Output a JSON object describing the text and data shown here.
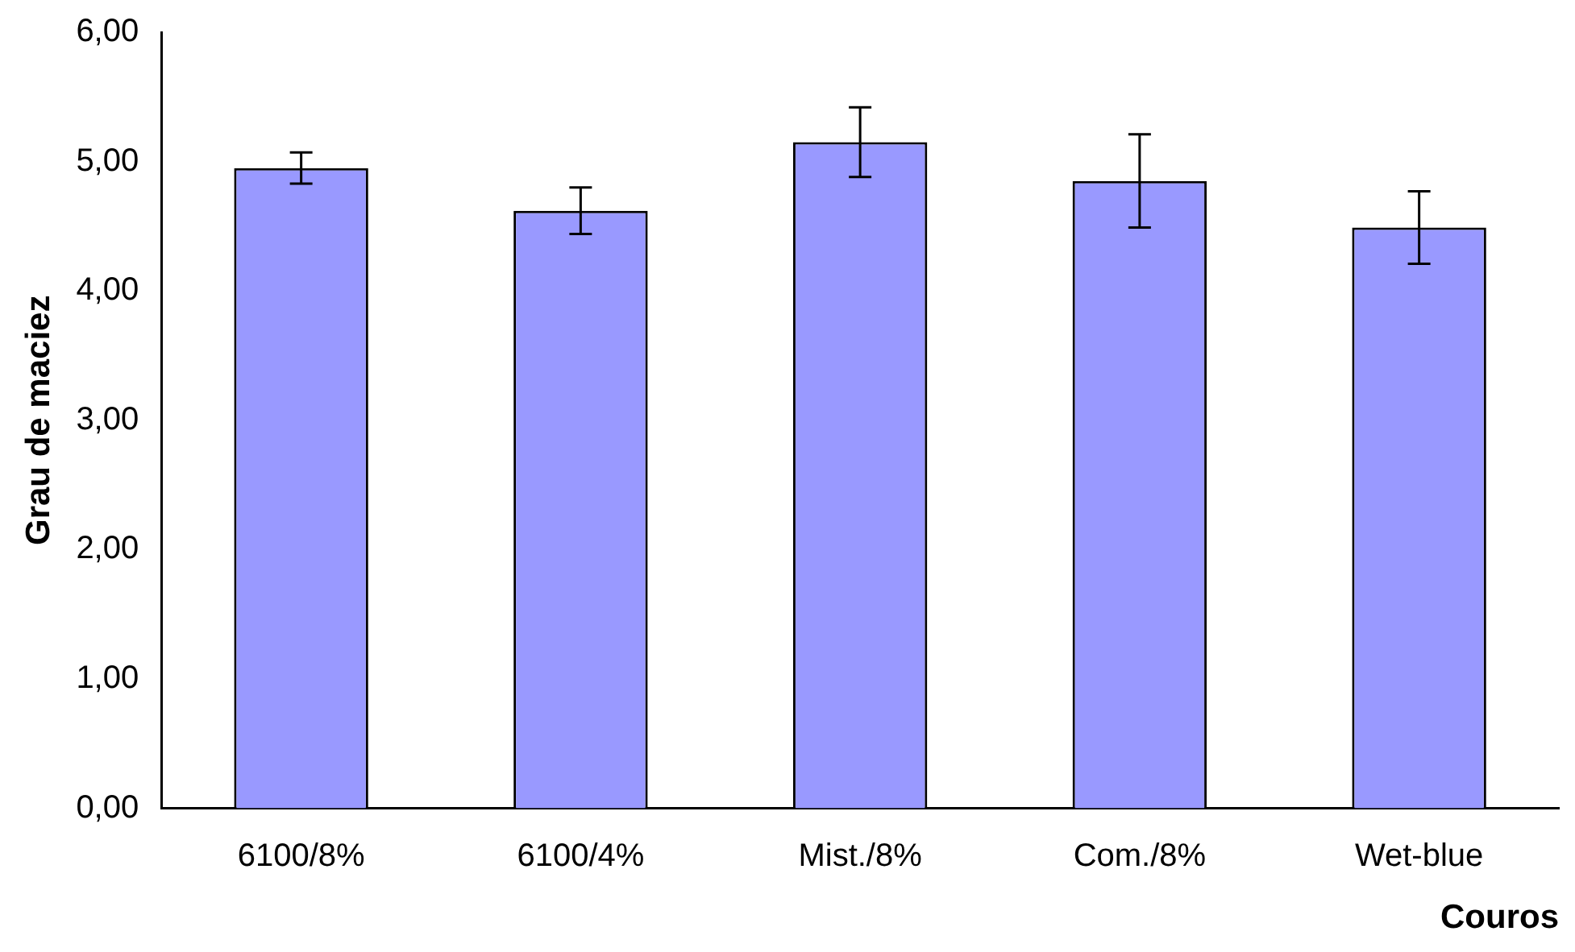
{
  "chart_data": {
    "type": "bar",
    "xlabel": "Couros",
    "ylabel": "Grau de maciez",
    "categories": [
      "6100/8%",
      "6100/4%",
      "Mist./8%",
      "Com./8%",
      "Wet-blue"
    ],
    "values": [
      4.95,
      4.62,
      5.15,
      4.85,
      4.49
    ],
    "errors": [
      0.12,
      0.18,
      0.27,
      0.36,
      0.28
    ],
    "color": "#9999ff",
    "ylim": [
      0,
      6
    ],
    "yticks": [
      {
        "value": 0,
        "label": "0,00"
      },
      {
        "value": 1,
        "label": "1,00"
      },
      {
        "value": 2,
        "label": "2,00"
      },
      {
        "value": 3,
        "label": "3,00"
      },
      {
        "value": 4,
        "label": "4,00"
      },
      {
        "value": 5,
        "label": "5,00"
      },
      {
        "value": 6,
        "label": "6,00"
      }
    ],
    "grid": false,
    "legend": false
  }
}
